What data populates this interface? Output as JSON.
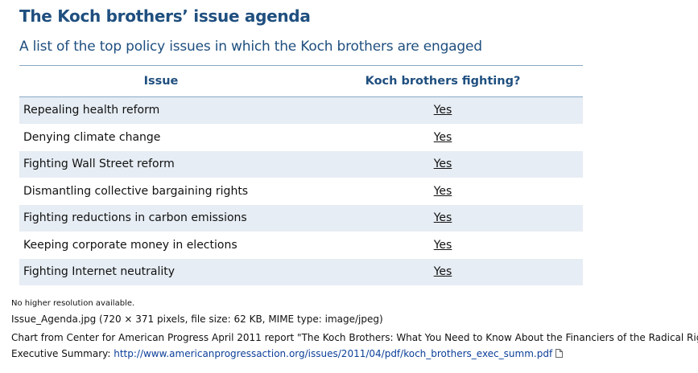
{
  "header": {
    "title": "The Koch brothers’ issue agenda",
    "subtitle": "A list of the top policy issues in which the Koch brothers are engaged"
  },
  "table": {
    "columns": [
      "Issue",
      "Koch brothers fighting?"
    ],
    "rows": [
      [
        "Repealing health reform",
        "Yes"
      ],
      [
        "Denying climate change",
        "Yes"
      ],
      [
        "Fighting Wall Street reform",
        "Yes"
      ],
      [
        "Dismantling collective bargaining rights",
        "Yes"
      ],
      [
        "Fighting reductions in carbon emissions",
        "Yes"
      ],
      [
        "Keeping corporate money in elections",
        "Yes"
      ],
      [
        "Fighting Internet neutrality",
        "Yes"
      ]
    ]
  },
  "footer": {
    "resolution_note": "No higher resolution available.",
    "file_info": "Issue_Agenda.jpg (720 × 371 pixels, file size: 62 KB, MIME type: image/jpeg)",
    "description": "Chart from Center for American Progress April 2011 report \"The Koch Brothers: What You Need to Know About the Financiers of the Radical Right\"",
    "summary_label": "Executive Summary:",
    "summary_url": "http://www.americanprogressaction.org/issues/2011/04/pdf/koch_brothers_exec_summ.pdf"
  }
}
